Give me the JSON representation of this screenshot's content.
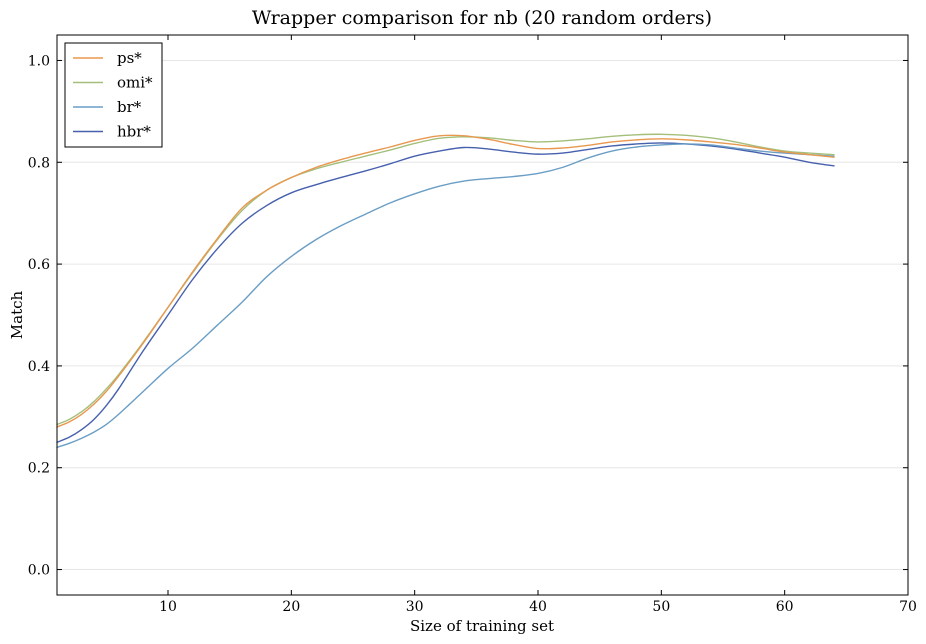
{
  "chart_data": {
    "type": "line",
    "title": "Wrapper comparison for nb (20 random orders)",
    "xlabel": "Size of training set",
    "ylabel": "Match",
    "xlim": [
      1,
      70
    ],
    "ylim": [
      -0.05,
      1.05
    ],
    "xticks": [
      10,
      20,
      30,
      40,
      50,
      60,
      70
    ],
    "yticks": [
      0.0,
      0.2,
      0.4,
      0.6,
      0.8,
      1.0
    ],
    "xtick_labels": [
      "10",
      "20",
      "30",
      "40",
      "50",
      "60",
      "70"
    ],
    "ytick_labels": [
      "0.0",
      "0.2",
      "0.4",
      "0.6",
      "0.8",
      "1.0"
    ],
    "grid": "horizontal",
    "legend_position": "top-left",
    "x": [
      1,
      2,
      3,
      4,
      5,
      6,
      8,
      10,
      12,
      14,
      16,
      18,
      20,
      22,
      24,
      26,
      28,
      30,
      32,
      34,
      36,
      38,
      40,
      42,
      44,
      46,
      48,
      50,
      52,
      54,
      56,
      58,
      60,
      62,
      64
    ],
    "series": [
      {
        "name": "ps*",
        "color": "#e8984f",
        "values": [
          0.28,
          0.29,
          0.305,
          0.325,
          0.35,
          0.38,
          0.445,
          0.515,
          0.585,
          0.65,
          0.71,
          0.745,
          0.77,
          0.79,
          0.805,
          0.818,
          0.83,
          0.843,
          0.852,
          0.852,
          0.845,
          0.835,
          0.827,
          0.828,
          0.833,
          0.84,
          0.844,
          0.846,
          0.844,
          0.84,
          0.835,
          0.828,
          0.82,
          0.815,
          0.81
        ]
      },
      {
        "name": "omi*",
        "color": "#a4bf7b",
        "values": [
          0.285,
          0.295,
          0.31,
          0.33,
          0.355,
          0.383,
          0.447,
          0.515,
          0.583,
          0.648,
          0.705,
          0.745,
          0.77,
          0.787,
          0.8,
          0.812,
          0.824,
          0.837,
          0.847,
          0.85,
          0.848,
          0.843,
          0.84,
          0.842,
          0.846,
          0.851,
          0.854,
          0.855,
          0.853,
          0.848,
          0.84,
          0.83,
          0.822,
          0.818,
          0.815
        ]
      },
      {
        "name": "br*",
        "color": "#6a9ec5",
        "values": [
          0.24,
          0.248,
          0.258,
          0.27,
          0.285,
          0.305,
          0.35,
          0.395,
          0.435,
          0.48,
          0.525,
          0.575,
          0.615,
          0.648,
          0.675,
          0.698,
          0.72,
          0.738,
          0.753,
          0.763,
          0.768,
          0.772,
          0.778,
          0.79,
          0.808,
          0.822,
          0.83,
          0.834,
          0.836,
          0.834,
          0.828,
          0.822,
          0.818,
          0.815,
          0.812
        ]
      },
      {
        "name": "hbr*",
        "color": "#4660ae",
        "values": [
          0.25,
          0.26,
          0.275,
          0.295,
          0.322,
          0.355,
          0.43,
          0.5,
          0.57,
          0.63,
          0.68,
          0.715,
          0.74,
          0.756,
          0.77,
          0.783,
          0.797,
          0.812,
          0.822,
          0.829,
          0.826,
          0.82,
          0.816,
          0.818,
          0.825,
          0.832,
          0.836,
          0.838,
          0.836,
          0.832,
          0.826,
          0.818,
          0.81,
          0.8,
          0.793
        ]
      }
    ]
  }
}
